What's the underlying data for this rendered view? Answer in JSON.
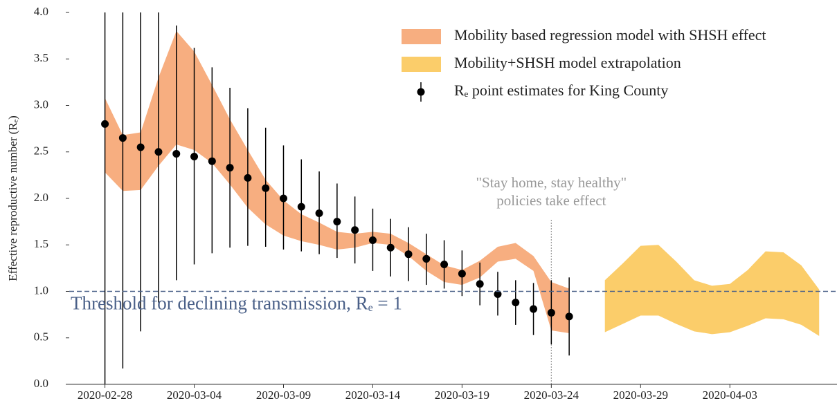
{
  "chart_data": {
    "type": "errorbar-band",
    "ylabel": "Effective reproductive number (Rₑ)",
    "xlim": [
      "2020-02-26",
      "2020-04-09"
    ],
    "xticks": [
      "2020-02-28",
      "2020-03-04",
      "2020-03-09",
      "2020-03-14",
      "2020-03-19",
      "2020-03-24",
      "2020-03-29",
      "2020-04-03"
    ],
    "ylim": [
      0,
      4
    ],
    "yticks": [
      {
        "value": 0,
        "label": "0.0"
      },
      0.5,
      {
        "value": 1,
        "label": "1.0"
      },
      1.5,
      {
        "value": 2,
        "label": "2.0"
      },
      2.5,
      {
        "value": 3,
        "label": "3.0"
      },
      3.5,
      {
        "value": 4,
        "label": "4.0"
      }
    ],
    "series": [
      {
        "name": "Mobility based regression model with SHSH effect",
        "kind": "band",
        "color": "#f7ae80",
        "x": [
          "2020-02-28",
          "2020-02-29",
          "2020-03-01",
          "2020-03-02",
          "2020-03-03",
          "2020-03-04",
          "2020-03-05",
          "2020-03-06",
          "2020-03-07",
          "2020-03-08",
          "2020-03-09",
          "2020-03-10",
          "2020-03-11",
          "2020-03-12",
          "2020-03-13",
          "2020-03-14",
          "2020-03-15",
          "2020-03-16",
          "2020-03-17",
          "2020-03-18",
          "2020-03-19",
          "2020-03-20",
          "2020-03-21",
          "2020-03-22",
          "2020-03-23",
          "2020-03-24",
          "2020-03-25"
        ],
        "lower": [
          2.28,
          2.08,
          2.09,
          2.35,
          2.58,
          2.52,
          2.38,
          2.15,
          1.9,
          1.72,
          1.6,
          1.54,
          1.5,
          1.45,
          1.47,
          1.52,
          1.5,
          1.38,
          1.22,
          1.1,
          1.07,
          1.15,
          1.32,
          1.35,
          1.22,
          0.58,
          0.55
        ],
        "upper": [
          3.08,
          2.68,
          2.71,
          3.3,
          3.8,
          3.58,
          3.22,
          2.85,
          2.52,
          2.2,
          1.98,
          1.83,
          1.74,
          1.64,
          1.62,
          1.64,
          1.62,
          1.52,
          1.4,
          1.28,
          1.23,
          1.33,
          1.48,
          1.52,
          1.38,
          1.1,
          1.03
        ]
      },
      {
        "name": "Mobility+SHSH model extrapolation",
        "kind": "band",
        "color": "#fbcd6a",
        "x": [
          "2020-03-27",
          "2020-03-28",
          "2020-03-29",
          "2020-03-30",
          "2020-03-31",
          "2020-04-01",
          "2020-04-02",
          "2020-04-03",
          "2020-04-04",
          "2020-04-05",
          "2020-04-06",
          "2020-04-07",
          "2020-04-08"
        ],
        "lower": [
          0.56,
          0.65,
          0.74,
          0.74,
          0.65,
          0.57,
          0.54,
          0.56,
          0.63,
          0.71,
          0.7,
          0.64,
          0.52
        ],
        "upper": [
          1.12,
          1.3,
          1.49,
          1.5,
          1.32,
          1.12,
          1.06,
          1.08,
          1.23,
          1.43,
          1.42,
          1.28,
          1.02
        ]
      },
      {
        "name": "Rₑ point estimates for King County",
        "kind": "points",
        "color": "#000000",
        "x": [
          "2020-02-28",
          "2020-02-29",
          "2020-03-01",
          "2020-03-02",
          "2020-03-03",
          "2020-03-04",
          "2020-03-05",
          "2020-03-06",
          "2020-03-07",
          "2020-03-08",
          "2020-03-09",
          "2020-03-10",
          "2020-03-11",
          "2020-03-12",
          "2020-03-13",
          "2020-03-14",
          "2020-03-15",
          "2020-03-16",
          "2020-03-17",
          "2020-03-18",
          "2020-03-19",
          "2020-03-20",
          "2020-03-21",
          "2020-03-22",
          "2020-03-23",
          "2020-03-24",
          "2020-03-25"
        ],
        "values": [
          2.8,
          2.65,
          2.55,
          2.5,
          2.48,
          2.45,
          2.4,
          2.33,
          2.22,
          2.11,
          2.0,
          1.91,
          1.84,
          1.75,
          1.66,
          1.55,
          1.47,
          1.4,
          1.35,
          1.29,
          1.19,
          1.08,
          0.97,
          0.88,
          0.81,
          0.77,
          0.73
        ],
        "lower": [
          0.0,
          0.17,
          0.57,
          0.88,
          1.12,
          1.29,
          1.41,
          1.47,
          1.49,
          1.48,
          1.45,
          1.43,
          1.4,
          1.36,
          1.3,
          1.22,
          1.16,
          1.11,
          1.07,
          1.03,
          0.95,
          0.85,
          0.74,
          0.64,
          0.53,
          0.43,
          0.31
        ],
        "upper": [
          4.0,
          4.0,
          4.0,
          4.0,
          3.86,
          3.62,
          3.41,
          3.19,
          2.97,
          2.76,
          2.57,
          2.42,
          2.29,
          2.16,
          2.02,
          1.89,
          1.78,
          1.69,
          1.62,
          1.55,
          1.44,
          1.31,
          1.21,
          1.12,
          1.09,
          1.12,
          1.15
        ]
      }
    ],
    "threshold": {
      "value": 1,
      "label": "Threshold for declining transmission, Rₑ = 1",
      "color": "#4a6088"
    },
    "event": {
      "x": "2020-03-24",
      "label": [
        "\"Stay home, stay healthy\"",
        "policies take effect"
      ],
      "color": "#999999"
    }
  }
}
